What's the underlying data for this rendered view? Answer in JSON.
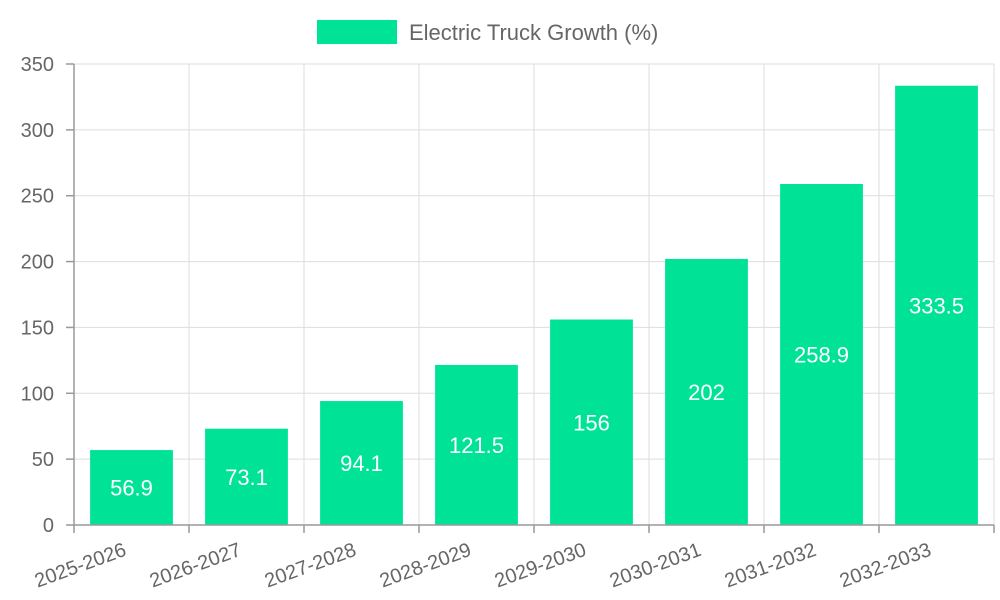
{
  "chart_data": {
    "type": "bar",
    "title": "",
    "xlabel": "",
    "ylabel": "",
    "categories": [
      "2025-2026",
      "2026-2027",
      "2027-2028",
      "2028-2029",
      "2029-2030",
      "2030-2031",
      "2031-2032",
      "2032-2033"
    ],
    "series": [
      {
        "name": "Electric Truck Growth (%)",
        "values": [
          56.9,
          73.1,
          94.1,
          121.5,
          156,
          202,
          258.9,
          333.5
        ],
        "color": "#00e396"
      }
    ],
    "ylim": [
      0,
      350
    ],
    "yticks": [
      0,
      50,
      100,
      150,
      200,
      250,
      300,
      350
    ],
    "grid": true,
    "legend_position": "top-center",
    "data_labels": true,
    "data_label_color": "#ffffff"
  }
}
